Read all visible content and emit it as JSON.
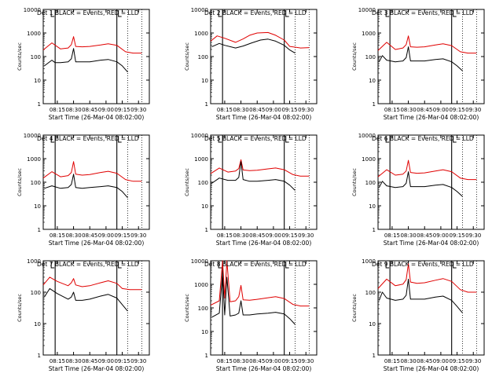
{
  "colors": {
    "events": "#000000",
    "lld": "#e00000",
    "axis": "#000000",
    "background": "#ffffff"
  },
  "chart_data": [
    {
      "type": "line",
      "title": "Det 1  BLACK = Events, RED = LLD",
      "xlabel": "Start Time (26-Mar-04 08:02:00)",
      "ylabel": "Counts/sec",
      "x_tick_labels": [
        "08:15",
        "08:30",
        "08:45",
        "09:00",
        "09:15",
        "09:30"
      ],
      "y_tick_labels": [
        "1",
        "10",
        "100",
        "1000",
        "10000"
      ],
      "y_scale": "log",
      "ylim": [
        1,
        10000
      ],
      "xlim": [
        "08:02",
        "09:40"
      ],
      "x_unit": "time",
      "vertical_markers_solid": [
        "08:13",
        "09:10"
      ],
      "vertical_markers_dotted": [
        "09:20",
        "09:33"
      ],
      "series": [
        {
          "name": "LLD",
          "color": "#e00000",
          "x": [
            "08:02",
            "08:10",
            "08:18",
            "08:25",
            "08:28",
            "08:30",
            "08:32",
            "08:38",
            "08:45",
            "08:55",
            "09:02",
            "09:10",
            "09:18",
            "09:25",
            "09:33"
          ],
          "y": [
            190,
            380,
            210,
            230,
            320,
            700,
            270,
            260,
            270,
            310,
            350,
            300,
            160,
            140,
            140
          ]
        },
        {
          "name": "Events",
          "color": "#000000",
          "x": [
            "08:03",
            "08:10",
            "08:13",
            "08:18",
            "08:25",
            "08:28",
            "08:30",
            "08:32",
            "08:38",
            "08:45",
            "08:55",
            "09:02",
            "09:10",
            "09:15",
            "09:20"
          ],
          "y": [
            40,
            70,
            55,
            55,
            60,
            80,
            220,
            60,
            60,
            60,
            70,
            75,
            60,
            40,
            22
          ]
        }
      ]
    },
    {
      "type": "line",
      "title": "Det 2  BLACK = Events, RED = LLD",
      "xlabel": "Start Time (26-Mar-04 08:02:00)",
      "ylabel": "Counts/sec",
      "x_tick_labels": [
        "08:15",
        "08:30",
        "08:45",
        "09:00",
        "09:15",
        "09:30"
      ],
      "y_tick_labels": [
        "1",
        "10",
        "100",
        "1000",
        "10000"
      ],
      "y_scale": "log",
      "ylim": [
        1,
        10000
      ],
      "xlim": [
        "08:02",
        "09:40"
      ],
      "x_unit": "time",
      "vertical_markers_solid": [
        "08:13",
        "09:10"
      ],
      "vertical_markers_dotted": [
        "09:20",
        "09:33"
      ],
      "series": [
        {
          "name": "LLD",
          "color": "#e00000",
          "x": [
            "08:02",
            "08:08",
            "08:15",
            "08:25",
            "08:32",
            "08:38",
            "08:45",
            "08:55",
            "09:02",
            "09:10",
            "09:15",
            "09:25",
            "09:33"
          ],
          "y": [
            450,
            750,
            600,
            400,
            560,
            800,
            1000,
            1050,
            800,
            500,
            270,
            230,
            240
          ]
        },
        {
          "name": "Events",
          "color": "#000000",
          "x": [
            "08:03",
            "08:10",
            "08:15",
            "08:25",
            "08:32",
            "08:40",
            "08:48",
            "08:55",
            "09:02",
            "09:10",
            "09:15",
            "09:20"
          ],
          "y": [
            260,
            360,
            300,
            230,
            280,
            380,
            500,
            550,
            450,
            300,
            190,
            140
          ]
        }
      ]
    },
    {
      "type": "line",
      "title": "Det 3  BLACK = Events, RED = LLD",
      "xlabel": "Start Time (26-Mar-04 08:02:00)",
      "ylabel": "Counts/sec",
      "x_tick_labels": [
        "08:15",
        "08:30",
        "08:45",
        "09:00",
        "09:15",
        "09:30"
      ],
      "y_tick_labels": [
        "1",
        "10",
        "100",
        "1000",
        "10000"
      ],
      "y_scale": "log",
      "ylim": [
        1,
        10000
      ],
      "xlim": [
        "08:02",
        "09:40"
      ],
      "x_unit": "time",
      "vertical_markers_solid": [
        "08:13",
        "09:10"
      ],
      "vertical_markers_dotted": [
        "09:20",
        "09:33"
      ],
      "series": [
        {
          "name": "LLD",
          "color": "#e00000",
          "x": [
            "08:02",
            "08:10",
            "08:18",
            "08:25",
            "08:28",
            "08:30",
            "08:32",
            "08:38",
            "08:45",
            "08:55",
            "09:02",
            "09:10",
            "09:18",
            "09:25",
            "09:33"
          ],
          "y": [
            180,
            400,
            200,
            230,
            320,
            750,
            260,
            250,
            260,
            310,
            350,
            290,
            160,
            140,
            140
          ]
        },
        {
          "name": "Events",
          "color": "#000000",
          "x": [
            "08:03",
            "08:06",
            "08:10",
            "08:18",
            "08:25",
            "08:28",
            "08:30",
            "08:32",
            "08:38",
            "08:45",
            "08:55",
            "09:02",
            "09:10",
            "09:15",
            "09:20"
          ],
          "y": [
            60,
            110,
            70,
            60,
            65,
            90,
            260,
            65,
            65,
            65,
            75,
            80,
            60,
            40,
            25
          ]
        }
      ]
    },
    {
      "type": "line",
      "title": "Det 4  BLACK = Events, RED = LLD",
      "xlabel": "Start Time (26-Mar-04 08:02:00)",
      "ylabel": "Counts/sec",
      "x_tick_labels": [
        "08:15",
        "08:30",
        "08:45",
        "09:00",
        "09:15",
        "09:30"
      ],
      "y_tick_labels": [
        "1",
        "10",
        "100",
        "1000",
        "10000"
      ],
      "y_scale": "log",
      "ylim": [
        1,
        10000
      ],
      "xlim": [
        "08:02",
        "09:40"
      ],
      "x_unit": "time",
      "vertical_markers_solid": [
        "08:13",
        "09:10"
      ],
      "vertical_markers_dotted": [
        "09:20",
        "09:33"
      ],
      "series": [
        {
          "name": "LLD",
          "color": "#e00000",
          "x": [
            "08:02",
            "08:10",
            "08:18",
            "08:25",
            "08:28",
            "08:30",
            "08:32",
            "08:38",
            "08:45",
            "08:55",
            "09:02",
            "09:10",
            "09:18",
            "09:25",
            "09:33"
          ],
          "y": [
            150,
            280,
            170,
            190,
            260,
            750,
            220,
            200,
            210,
            260,
            290,
            240,
            130,
            110,
            110
          ]
        },
        {
          "name": "Events",
          "color": "#000000",
          "x": [
            "08:03",
            "08:10",
            "08:18",
            "08:25",
            "08:28",
            "08:30",
            "08:32",
            "08:38",
            "08:45",
            "08:55",
            "09:02",
            "09:10",
            "09:15",
            "09:20"
          ],
          "y": [
            55,
            70,
            55,
            60,
            80,
            220,
            60,
            55,
            60,
            65,
            70,
            60,
            40,
            22
          ]
        }
      ]
    },
    {
      "type": "line",
      "title": "Det 5  BLACK = Events, RED = LLD",
      "xlabel": "Start Time (26-Mar-04 08:02:00)",
      "ylabel": "Counts/sec",
      "x_tick_labels": [
        "08:15",
        "08:30",
        "08:45",
        "09:00",
        "09:15",
        "09:30"
      ],
      "y_tick_labels": [
        "1",
        "10",
        "100",
        "1000",
        "10000"
      ],
      "y_scale": "log",
      "ylim": [
        1,
        10000
      ],
      "xlim": [
        "08:02",
        "09:40"
      ],
      "x_unit": "time",
      "vertical_markers_solid": [
        "08:13",
        "09:10"
      ],
      "vertical_markers_dotted": [
        "09:20",
        "09:33"
      ],
      "series": [
        {
          "name": "LLD",
          "color": "#e00000",
          "x": [
            "08:02",
            "08:10",
            "08:18",
            "08:25",
            "08:28",
            "08:30",
            "08:32",
            "08:38",
            "08:45",
            "08:55",
            "09:02",
            "09:10",
            "09:18",
            "09:25",
            "09:33"
          ],
          "y": [
            230,
            400,
            270,
            300,
            380,
            900,
            330,
            310,
            320,
            370,
            400,
            340,
            210,
            180,
            180
          ]
        },
        {
          "name": "Events",
          "color": "#000000",
          "x": [
            "08:03",
            "08:10",
            "08:18",
            "08:25",
            "08:28",
            "08:30",
            "08:32",
            "08:38",
            "08:45",
            "08:55",
            "09:02",
            "09:10",
            "09:15",
            "09:20"
          ],
          "y": [
            90,
            150,
            120,
            120,
            160,
            750,
            130,
            110,
            110,
            120,
            130,
            110,
            75,
            45
          ]
        }
      ]
    },
    {
      "type": "line",
      "title": "Det 6  BLACK = Events, RED = LLD",
      "xlabel": "Start Time (26-Mar-04 08:02:00)",
      "ylabel": "Counts/sec",
      "x_tick_labels": [
        "08:15",
        "08:30",
        "08:45",
        "09:00",
        "09:15",
        "09:30"
      ],
      "y_tick_labels": [
        "1",
        "10",
        "100",
        "1000",
        "10000"
      ],
      "y_scale": "log",
      "ylim": [
        1,
        10000
      ],
      "xlim": [
        "08:02",
        "09:40"
      ],
      "x_unit": "time",
      "vertical_markers_solid": [
        "08:13",
        "09:10"
      ],
      "vertical_markers_dotted": [
        "09:20",
        "09:33"
      ],
      "series": [
        {
          "name": "LLD",
          "color": "#e00000",
          "x": [
            "08:02",
            "08:10",
            "08:18",
            "08:25",
            "08:28",
            "08:30",
            "08:32",
            "08:38",
            "08:45",
            "08:55",
            "09:02",
            "09:10",
            "09:18",
            "09:25",
            "09:33"
          ],
          "y": [
            170,
            340,
            200,
            220,
            300,
            850,
            260,
            240,
            250,
            300,
            340,
            280,
            150,
            130,
            130
          ]
        },
        {
          "name": "Events",
          "color": "#000000",
          "x": [
            "08:03",
            "08:06",
            "08:10",
            "08:18",
            "08:25",
            "08:28",
            "08:30",
            "08:32",
            "08:38",
            "08:45",
            "08:55",
            "09:02",
            "09:10",
            "09:15",
            "09:20"
          ],
          "y": [
            60,
            110,
            70,
            60,
            65,
            90,
            280,
            65,
            65,
            65,
            75,
            80,
            60,
            40,
            25
          ]
        }
      ]
    },
    {
      "type": "line",
      "title": "Det 7  BLACK = Events, RED = LLD",
      "xlabel": "Start Time (26-Mar-04 08:02:00)",
      "ylabel": "Counts/sec",
      "x_tick_labels": [
        "08:15",
        "08:30",
        "08:45",
        "09:00",
        "09:15",
        "09:30"
      ],
      "y_tick_labels": [
        "1",
        "10",
        "100",
        "1000"
      ],
      "y_scale": "log",
      "ylim": [
        1,
        1000
      ],
      "xlim": [
        "08:02",
        "09:40"
      ],
      "x_unit": "time",
      "vertical_markers_solid": [
        "08:13",
        "09:10"
      ],
      "vertical_markers_dotted": [
        "09:20",
        "09:33"
      ],
      "series": [
        {
          "name": "LLD",
          "color": "#e00000",
          "x": [
            "08:02",
            "08:08",
            "08:15",
            "08:25",
            "08:28",
            "08:30",
            "08:32",
            "08:38",
            "08:45",
            "08:55",
            "09:02",
            "09:10",
            "09:15",
            "09:22",
            "09:33"
          ],
          "y": [
            170,
            300,
            220,
            160,
            200,
            270,
            170,
            150,
            160,
            200,
            230,
            190,
            130,
            120,
            120
          ]
        },
        {
          "name": "Events",
          "color": "#000000",
          "x": [
            "08:03",
            "08:08",
            "08:15",
            "08:25",
            "08:28",
            "08:30",
            "08:32",
            "08:38",
            "08:45",
            "08:55",
            "09:02",
            "09:10",
            "09:15",
            "09:20"
          ],
          "y": [
            70,
            130,
            90,
            60,
            70,
            100,
            55,
            55,
            60,
            75,
            85,
            65,
            40,
            25
          ]
        }
      ]
    },
    {
      "type": "line",
      "title": "Det 8  BLACK = Events, RED = LLD",
      "xlabel": "Start Time (26-Mar-04 08:02:00)",
      "ylabel": "Counts/sec",
      "x_tick_labels": [
        "08:15",
        "08:30",
        "08:45",
        "09:00",
        "09:15",
        "09:30"
      ],
      "y_tick_labels": [
        "1",
        "10",
        "100",
        "1000",
        "10000"
      ],
      "y_scale": "log",
      "ylim": [
        1,
        10000
      ],
      "xlim": [
        "08:02",
        "09:40"
      ],
      "x_unit": "time",
      "vertical_markers_solid": [
        "08:13",
        "09:10"
      ],
      "vertical_markers_dotted": [
        "09:20",
        "09:33"
      ],
      "series": [
        {
          "name": "LLD",
          "color": "#e00000",
          "x": [
            "08:02",
            "08:10",
            "08:13",
            "08:15",
            "08:17",
            "08:20",
            "08:25",
            "08:28",
            "08:30",
            "08:32",
            "08:38",
            "08:45",
            "08:55",
            "09:02",
            "09:10",
            "09:18",
            "09:25",
            "09:33"
          ],
          "y": [
            130,
            200,
            10000,
            260,
            10000,
            180,
            200,
            300,
            900,
            220,
            210,
            230,
            270,
            300,
            250,
            140,
            120,
            120
          ]
        },
        {
          "name": "Events",
          "color": "#000000",
          "x": [
            "08:03",
            "08:10",
            "08:13",
            "08:15",
            "08:17",
            "08:20",
            "08:25",
            "08:28",
            "08:30",
            "08:32",
            "08:38",
            "08:45",
            "08:55",
            "09:02",
            "09:10",
            "09:15",
            "09:20"
          ],
          "y": [
            40,
            60,
            3000,
            50,
            2000,
            45,
            50,
            60,
            200,
            50,
            50,
            55,
            60,
            65,
            55,
            35,
            20
          ]
        }
      ]
    },
    {
      "type": "line",
      "title": "Det 9  BLACK = Events, RED = LLD",
      "xlabel": "Start Time (26-Mar-04 08:02:00)",
      "ylabel": "Counts/sec",
      "x_tick_labels": [
        "08:15",
        "08:30",
        "08:45",
        "09:00",
        "09:15",
        "09:30"
      ],
      "y_tick_labels": [
        "1",
        "10",
        "100",
        "1000"
      ],
      "y_scale": "log",
      "ylim": [
        1,
        1000
      ],
      "xlim": [
        "08:02",
        "09:40"
      ],
      "x_unit": "time",
      "vertical_markers_solid": [
        "08:13",
        "09:10"
      ],
      "vertical_markers_dotted": [
        "09:20",
        "09:33"
      ],
      "series": [
        {
          "name": "LLD",
          "color": "#e00000",
          "x": [
            "08:02",
            "08:10",
            "08:18",
            "08:25",
            "08:28",
            "08:30",
            "08:32",
            "08:38",
            "08:45",
            "08:55",
            "09:02",
            "09:10",
            "09:18",
            "09:25",
            "09:33"
          ],
          "y": [
            130,
            260,
            160,
            180,
            250,
            800,
            210,
            190,
            200,
            240,
            270,
            220,
            120,
            100,
            100
          ]
        },
        {
          "name": "Events",
          "color": "#000000",
          "x": [
            "08:03",
            "08:06",
            "08:10",
            "08:18",
            "08:25",
            "08:28",
            "08:30",
            "08:32",
            "08:38",
            "08:45",
            "08:55",
            "09:02",
            "09:10",
            "09:15",
            "09:20"
          ],
          "y": [
            55,
            100,
            65,
            55,
            60,
            80,
            260,
            60,
            60,
            60,
            70,
            75,
            55,
            35,
            22
          ]
        }
      ]
    }
  ]
}
